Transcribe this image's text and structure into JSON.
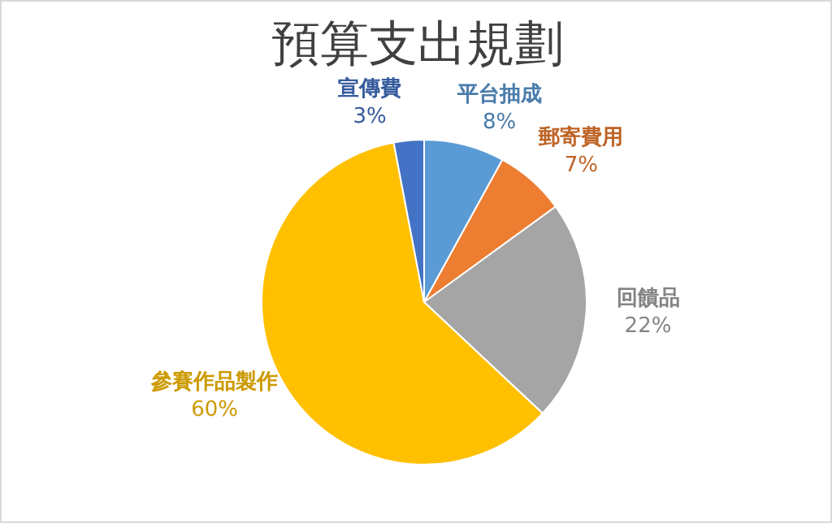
{
  "chart_data": {
    "type": "pie",
    "title": "預算支出規劃",
    "categories": [
      "平台抽成",
      "郵寄費用",
      "回饋品",
      "參賽作品製作",
      "宣傳費"
    ],
    "values": [
      8,
      7,
      22,
      60,
      3
    ],
    "colors": [
      "#5b9bd5",
      "#ed7d31",
      "#a5a5a5",
      "#ffc000",
      "#4472c4"
    ],
    "value_labels": [
      "8%",
      "7%",
      "22%",
      "60%",
      "3%"
    ],
    "legend": false
  }
}
